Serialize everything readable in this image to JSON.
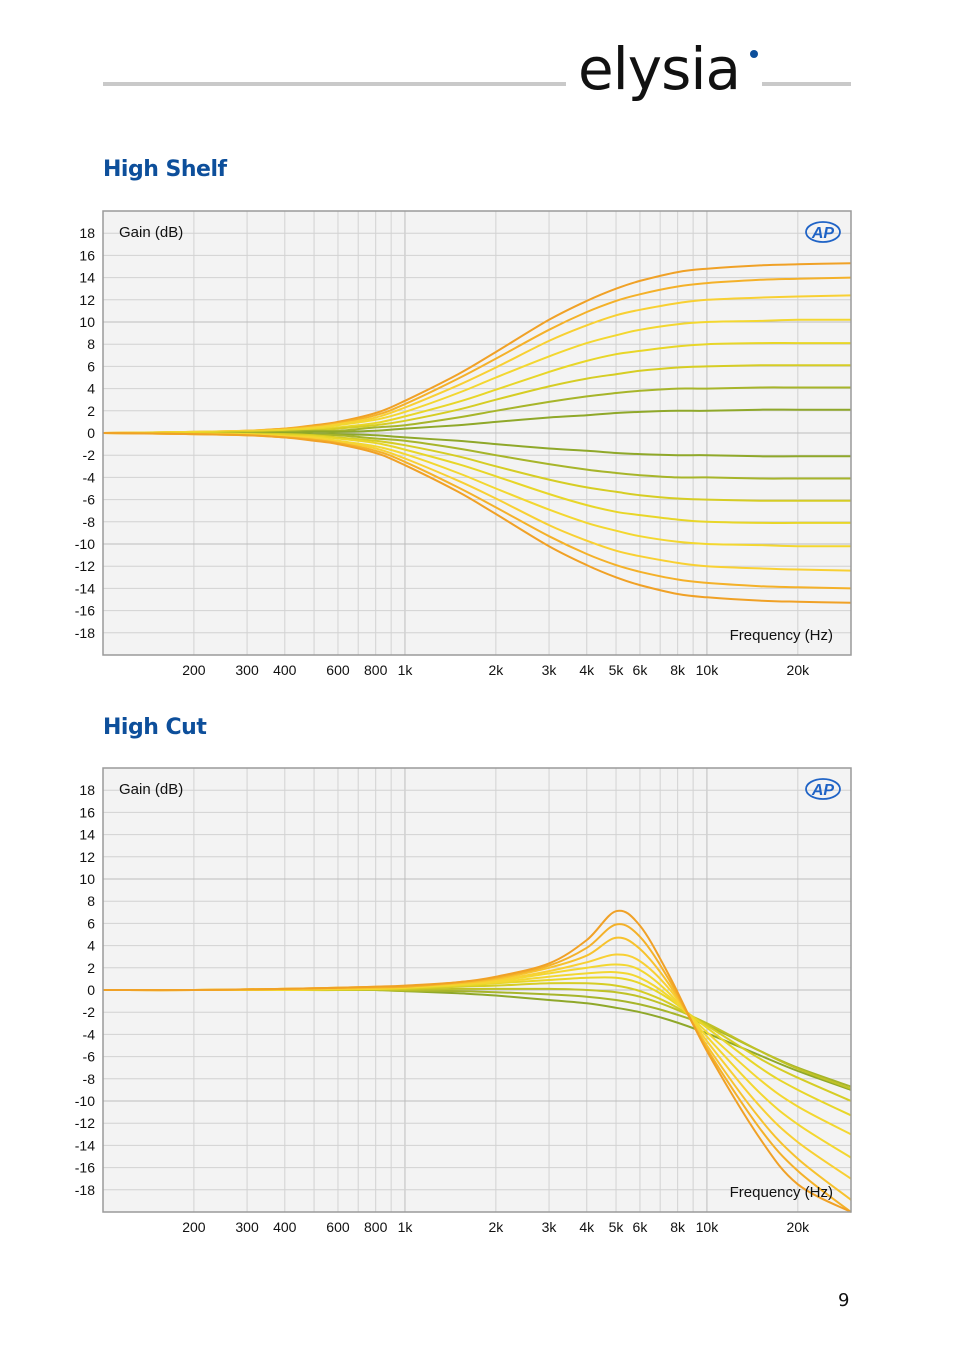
{
  "brand": {
    "name": "elysia"
  },
  "sections": [
    {
      "title": "High Shelf"
    },
    {
      "title": "High Cut"
    }
  ],
  "page_number": "9",
  "colors": {
    "brand_blue": "#0d4f9b",
    "curve_palette": [
      "#8fa82a",
      "#a7b52a",
      "#c0c226",
      "#d6cd24",
      "#e8d628",
      "#f3d730",
      "#f8d033",
      "#f7c22d",
      "#f4b129",
      "#f0a126"
    ]
  },
  "chart_data": [
    {
      "type": "line",
      "ylabel": "Gain (dB)",
      "xlabel": "Frequency (Hz)",
      "logo": "AP",
      "x_scale": "log",
      "xlim": [
        100,
        30000
      ],
      "ylim": [
        -20,
        20
      ],
      "x_ticks": [
        {
          "value": 200,
          "label": "200"
        },
        {
          "value": 300,
          "label": "300"
        },
        {
          "value": 400,
          "label": "400"
        },
        {
          "value": 600,
          "label": "600"
        },
        {
          "value": 800,
          "label": "800"
        },
        {
          "value": 1000,
          "label": "1k"
        },
        {
          "value": 2000,
          "label": "2k"
        },
        {
          "value": 3000,
          "label": "3k"
        },
        {
          "value": 4000,
          "label": "4k"
        },
        {
          "value": 5000,
          "label": "5k"
        },
        {
          "value": 6000,
          "label": "6k"
        },
        {
          "value": 8000,
          "label": "8k"
        },
        {
          "value": 10000,
          "label": "10k"
        },
        {
          "value": 20000,
          "label": "20k"
        }
      ],
      "y_ticks": [
        "18",
        "16",
        "14",
        "12",
        "10",
        "8",
        "6",
        "4",
        "2",
        "0",
        "-2",
        "-4",
        "-6",
        "-8",
        "-10",
        "-12",
        "-14",
        "-16",
        "-18"
      ],
      "x": [
        100,
        200,
        300,
        400,
        500,
        600,
        800,
        1000,
        1500,
        2000,
        3000,
        4000,
        5000,
        6000,
        8000,
        10000,
        15000,
        20000,
        30000
      ],
      "series": [
        {
          "values": [
            0,
            0.1,
            0.2,
            0.4,
            0.7,
            1.0,
            1.8,
            2.9,
            5.3,
            7.3,
            10.2,
            11.9,
            13.0,
            13.7,
            14.5,
            14.8,
            15.1,
            15.2,
            15.3
          ]
        },
        {
          "values": [
            0,
            0.1,
            0.2,
            0.4,
            0.6,
            0.9,
            1.6,
            2.6,
            4.9,
            6.7,
            9.3,
            10.9,
            11.9,
            12.5,
            13.2,
            13.5,
            13.8,
            13.9,
            14.0
          ]
        },
        {
          "values": [
            0,
            0.1,
            0.2,
            0.3,
            0.5,
            0.8,
            1.4,
            2.3,
            4.3,
            5.9,
            8.3,
            9.7,
            10.6,
            11.1,
            11.7,
            12.0,
            12.2,
            12.3,
            12.4
          ]
        },
        {
          "values": [
            0,
            0.1,
            0.1,
            0.3,
            0.4,
            0.7,
            1.2,
            1.9,
            3.6,
            5.0,
            6.9,
            8.1,
            8.8,
            9.3,
            9.8,
            10.0,
            10.1,
            10.2,
            10.2
          ]
        },
        {
          "values": [
            0,
            0.0,
            0.1,
            0.2,
            0.3,
            0.5,
            0.9,
            1.5,
            2.8,
            3.9,
            5.5,
            6.5,
            7.1,
            7.4,
            7.8,
            8.0,
            8.1,
            8.1,
            8.1
          ]
        },
        {
          "values": [
            0,
            0.0,
            0.1,
            0.1,
            0.2,
            0.4,
            0.7,
            1.1,
            2.1,
            3.0,
            4.2,
            4.9,
            5.3,
            5.6,
            5.9,
            6.0,
            6.1,
            6.1,
            6.1
          ]
        },
        {
          "values": [
            0,
            0.0,
            0.0,
            0.1,
            0.2,
            0.2,
            0.5,
            0.7,
            1.4,
            2.0,
            2.8,
            3.3,
            3.6,
            3.8,
            4.0,
            4.0,
            4.1,
            4.1,
            4.1
          ]
        },
        {
          "values": [
            0,
            0.0,
            0.0,
            0.0,
            0.1,
            0.1,
            0.2,
            0.4,
            0.7,
            1.0,
            1.4,
            1.6,
            1.8,
            1.9,
            2.0,
            2.0,
            2.1,
            2.1,
            2.1
          ]
        },
        {
          "values": [
            0,
            0.0,
            0.0,
            0.0,
            -0.1,
            -0.1,
            -0.2,
            -0.4,
            -0.7,
            -1.0,
            -1.4,
            -1.6,
            -1.8,
            -1.9,
            -2.0,
            -2.0,
            -2.1,
            -2.1,
            -2.1
          ]
        },
        {
          "values": [
            0,
            0.0,
            0.0,
            -0.1,
            -0.2,
            -0.2,
            -0.5,
            -0.7,
            -1.4,
            -2.0,
            -2.8,
            -3.3,
            -3.6,
            -3.8,
            -4.0,
            -4.0,
            -4.1,
            -4.1,
            -4.1
          ]
        },
        {
          "values": [
            0,
            0.0,
            -0.1,
            -0.1,
            -0.2,
            -0.4,
            -0.7,
            -1.1,
            -2.1,
            -3.0,
            -4.2,
            -4.9,
            -5.3,
            -5.6,
            -5.9,
            -6.0,
            -6.1,
            -6.1,
            -6.1
          ]
        },
        {
          "values": [
            0,
            0.0,
            -0.1,
            -0.2,
            -0.3,
            -0.5,
            -0.9,
            -1.5,
            -2.8,
            -3.9,
            -5.5,
            -6.5,
            -7.1,
            -7.4,
            -7.8,
            -8.0,
            -8.1,
            -8.1,
            -8.1
          ]
        },
        {
          "values": [
            0,
            -0.1,
            -0.1,
            -0.3,
            -0.4,
            -0.7,
            -1.2,
            -1.9,
            -3.6,
            -5.0,
            -6.9,
            -8.1,
            -8.8,
            -9.3,
            -9.8,
            -10.0,
            -10.1,
            -10.2,
            -10.2
          ]
        },
        {
          "values": [
            0,
            -0.1,
            -0.2,
            -0.3,
            -0.5,
            -0.8,
            -1.4,
            -2.3,
            -4.3,
            -5.9,
            -8.3,
            -9.7,
            -10.6,
            -11.1,
            -11.7,
            -12.0,
            -12.2,
            -12.3,
            -12.4
          ]
        },
        {
          "values": [
            0,
            -0.1,
            -0.2,
            -0.4,
            -0.6,
            -0.9,
            -1.6,
            -2.6,
            -4.9,
            -6.7,
            -9.3,
            -10.9,
            -11.9,
            -12.5,
            -13.2,
            -13.5,
            -13.8,
            -13.9,
            -14.0
          ]
        },
        {
          "values": [
            0,
            -0.1,
            -0.2,
            -0.4,
            -0.7,
            -1.0,
            -1.8,
            -2.9,
            -5.3,
            -7.3,
            -10.2,
            -11.9,
            -13.0,
            -13.7,
            -14.5,
            -14.8,
            -15.1,
            -15.2,
            -15.3
          ]
        }
      ]
    },
    {
      "type": "line",
      "ylabel": "Gain (dB)",
      "xlabel": "Frequency (Hz)",
      "logo": "AP",
      "x_scale": "log",
      "xlim": [
        100,
        30000
      ],
      "ylim": [
        -20,
        20
      ],
      "x_ticks": [
        {
          "value": 200,
          "label": "200"
        },
        {
          "value": 300,
          "label": "300"
        },
        {
          "value": 400,
          "label": "400"
        },
        {
          "value": 600,
          "label": "600"
        },
        {
          "value": 800,
          "label": "800"
        },
        {
          "value": 1000,
          "label": "1k"
        },
        {
          "value": 2000,
          "label": "2k"
        },
        {
          "value": 3000,
          "label": "3k"
        },
        {
          "value": 4000,
          "label": "4k"
        },
        {
          "value": 5000,
          "label": "5k"
        },
        {
          "value": 6000,
          "label": "6k"
        },
        {
          "value": 8000,
          "label": "8k"
        },
        {
          "value": 10000,
          "label": "10k"
        },
        {
          "value": 20000,
          "label": "20k"
        }
      ],
      "y_ticks": [
        "18",
        "16",
        "14",
        "12",
        "10",
        "8",
        "6",
        "4",
        "2",
        "0",
        "-2",
        "-4",
        "-6",
        "-8",
        "-10",
        "-12",
        "-14",
        "-16",
        "-18"
      ],
      "x": [
        100,
        200,
        400,
        600,
        800,
        1000,
        1500,
        2000,
        3000,
        4000,
        5000,
        6000,
        7500,
        10000,
        15000,
        20000,
        30000
      ],
      "series": [
        {
          "values": [
            0,
            0,
            0,
            0,
            0,
            -0.1,
            -0.3,
            -0.5,
            -0.9,
            -1.2,
            -1.6,
            -2.0,
            -2.7,
            -3.9,
            -5.9,
            -7.3,
            -9.0
          ]
        },
        {
          "values": [
            0,
            0,
            0,
            0,
            0,
            -0.1,
            -0.1,
            -0.2,
            -0.4,
            -0.6,
            -0.9,
            -1.3,
            -2.0,
            -3.2,
            -5.5,
            -7.0,
            -8.7
          ]
        },
        {
          "values": [
            0,
            0,
            0,
            0,
            0,
            0.0,
            0.1,
            0.1,
            0.1,
            0.0,
            -0.2,
            -0.6,
            -1.5,
            -3.0,
            -5.5,
            -7.1,
            -8.9
          ]
        },
        {
          "values": [
            0,
            0,
            0,
            0,
            0.1,
            0.1,
            0.3,
            0.4,
            0.6,
            0.6,
            0.4,
            -0.1,
            -1.2,
            -3.2,
            -6.2,
            -7.9,
            -10.0
          ]
        },
        {
          "values": [
            0,
            0,
            0,
            0.1,
            0.1,
            0.2,
            0.4,
            0.6,
            0.9,
            1.1,
            1.1,
            0.6,
            -0.8,
            -3.4,
            -7.0,
            -9.0,
            -11.3
          ]
        },
        {
          "values": [
            0,
            0,
            0,
            0.1,
            0.1,
            0.2,
            0.5,
            0.7,
            1.2,
            1.5,
            1.6,
            1.1,
            -0.6,
            -3.8,
            -8.1,
            -10.5,
            -13.0
          ]
        },
        {
          "values": [
            0,
            0,
            0.1,
            0.1,
            0.2,
            0.2,
            0.5,
            0.8,
            1.5,
            2.0,
            2.3,
            1.8,
            -0.3,
            -4.2,
            -9.3,
            -12.1,
            -15.1
          ]
        },
        {
          "values": [
            0,
            0,
            0.1,
            0.1,
            0.2,
            0.3,
            0.6,
            0.9,
            1.7,
            2.5,
            3.2,
            2.6,
            0.1,
            -4.6,
            -10.5,
            -13.7,
            -17.0
          ]
        },
        {
          "values": [
            0,
            0,
            0.1,
            0.2,
            0.2,
            0.3,
            0.6,
            1.0,
            2.0,
            3.1,
            4.7,
            3.7,
            0.5,
            -5.0,
            -11.6,
            -15.2,
            -18.9
          ]
        },
        {
          "values": [
            0,
            0,
            0.1,
            0.2,
            0.3,
            0.3,
            0.7,
            1.1,
            2.2,
            3.8,
            5.9,
            4.8,
            0.9,
            -5.3,
            -12.5,
            -16.3,
            -20.0
          ]
        },
        {
          "values": [
            0,
            0,
            0.1,
            0.2,
            0.3,
            0.4,
            0.7,
            1.2,
            2.4,
            4.5,
            7.1,
            5.8,
            1.3,
            -5.5,
            -13.4,
            -17.5,
            -20.0
          ]
        }
      ]
    }
  ]
}
